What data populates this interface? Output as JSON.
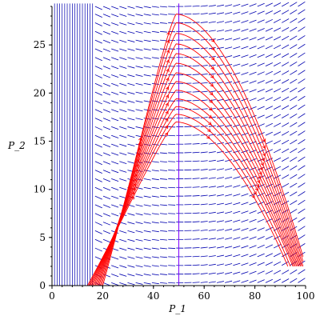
{
  "chart_data": {
    "type": "direction-field",
    "xlabel": "P_1",
    "ylabel": "P_2",
    "xlim": [
      0,
      100
    ],
    "ylim": [
      0,
      29
    ],
    "x_ticks": [
      0,
      20,
      40,
      60,
      80,
      100
    ],
    "y_ticks": [
      0,
      5,
      10,
      15,
      20,
      25
    ],
    "x_tick_labels": [
      "0",
      "20",
      "40",
      "60",
      "80",
      "100"
    ],
    "y_tick_labels": [
      "0",
      "5",
      "10",
      "15",
      "20",
      "25"
    ],
    "field_color": "#0000b0",
    "curve_color": "#ff0000",
    "isocline_color": "#8000ff",
    "vertical_isocline_x": 50,
    "field_rows_y": [
      0.3,
      1.2,
      2.1,
      3.0,
      3.9,
      4.8,
      5.7,
      6.6,
      7.5,
      8.4,
      9.3,
      10.2,
      11.1,
      12.0,
      12.9,
      13.8,
      14.7,
      15.6,
      16.5,
      17.4,
      18.3,
      19.2,
      20.1,
      21.0,
      21.9,
      22.8,
      23.7,
      24.6,
      25.5,
      26.4,
      27.3,
      28.2,
      29.0
    ],
    "trajectories": [
      {
        "start": [
          14,
          0
        ],
        "peak": [
          49,
          17.0
        ],
        "end": [
          93,
          2
        ]
      },
      {
        "start": [
          14.5,
          0
        ],
        "peak": [
          49,
          17.8
        ],
        "end": [
          94,
          2
        ]
      },
      {
        "start": [
          15,
          0
        ],
        "peak": [
          49,
          18.6
        ],
        "end": [
          95,
          2
        ]
      },
      {
        "start": [
          15.5,
          0
        ],
        "peak": [
          49,
          19.4
        ],
        "end": [
          95.5,
          2
        ]
      },
      {
        "start": [
          16,
          0
        ],
        "peak": [
          49,
          20.3
        ],
        "end": [
          96,
          2
        ]
      },
      {
        "start": [
          16.5,
          0
        ],
        "peak": [
          49,
          21.2
        ],
        "end": [
          96.5,
          2
        ]
      },
      {
        "start": [
          17,
          0
        ],
        "peak": [
          49,
          22.1
        ],
        "end": [
          97,
          2
        ]
      },
      {
        "start": [
          17.5,
          0
        ],
        "peak": [
          49,
          23.1
        ],
        "end": [
          97.5,
          2
        ]
      },
      {
        "start": [
          18,
          0
        ],
        "peak": [
          49,
          24.1
        ],
        "end": [
          98,
          2
        ]
      },
      {
        "start": [
          18.5,
          0
        ],
        "peak": [
          49,
          25.1
        ],
        "end": [
          98.5,
          2
        ]
      },
      {
        "start": [
          19,
          0
        ],
        "peak": [
          49,
          26.2
        ],
        "end": [
          99,
          2
        ]
      },
      {
        "start": [
          19.5,
          0
        ],
        "peak": [
          49,
          27.3
        ],
        "end": [
          99,
          2.5
        ]
      },
      {
        "start": [
          20,
          0
        ],
        "peak": [
          49,
          28.2
        ],
        "end": [
          99,
          3
        ]
      }
    ]
  }
}
